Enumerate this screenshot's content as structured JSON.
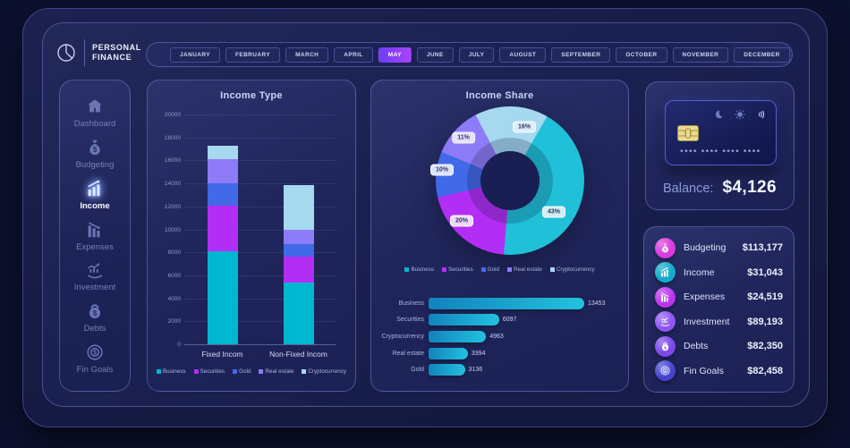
{
  "brand": {
    "line1": "PERSONAL",
    "line2": "FINANCE"
  },
  "months": {
    "items": [
      "JANUARY",
      "FEBRUARY",
      "MARCH",
      "APRIL",
      "MAY",
      "JUNE",
      "JULY",
      "AUGUST",
      "SEPTEMBER",
      "OCTOBER",
      "NOVEMBER",
      "DECEMBER"
    ],
    "selected": "MAY",
    "selected_index": 4
  },
  "colors": {
    "accent_gradient": [
      "#6a3df5",
      "#a844fb"
    ],
    "teal": "#00b7d0",
    "magenta": "#b32ef5",
    "blue": "#4169e8",
    "periwinkle": "#8d7bf7",
    "lightblue": "#a6d8ef"
  },
  "sidebar": {
    "items": [
      {
        "label": "Dashboard",
        "icon": "home-icon",
        "active": false
      },
      {
        "label": "Budgeting",
        "icon": "money-bag-icon",
        "active": false
      },
      {
        "label": "Income",
        "icon": "income-chart-icon",
        "active": true
      },
      {
        "label": "Expenses",
        "icon": "expenses-chart-icon",
        "active": false
      },
      {
        "label": "Investment",
        "icon": "investment-icon",
        "active": false
      },
      {
        "label": "Debts",
        "icon": "debts-icon",
        "active": false
      },
      {
        "label": "Fin Goals",
        "icon": "fin-goals-icon",
        "active": false
      }
    ]
  },
  "legend": {
    "items": [
      {
        "label": "Business",
        "color": "#00b7d0"
      },
      {
        "label": "Securities",
        "color": "#b32ef5"
      },
      {
        "label": "Gold",
        "color": "#4169e8"
      },
      {
        "label": "Real estate",
        "color": "#8d7bf7"
      },
      {
        "label": "Cryptocurrency",
        "color": "#a6d8ef"
      }
    ]
  },
  "income_type_card": {
    "title": "Income Type",
    "x_labels": [
      "Fixed Incom",
      "Non-Fixed Incom"
    ],
    "y_ticks": [
      "20000",
      "18000",
      "16000",
      "14000",
      "12000",
      "10000",
      "8000",
      "6000",
      "4000",
      "2000",
      "0"
    ]
  },
  "income_share_card": {
    "title": "Income Share"
  },
  "balance_card": {
    "label": "Balance:",
    "amount": "$4,126",
    "card_number": "**** **** **** ****",
    "card_icons": [
      "moon-icon",
      "sun-icon",
      "contactless-icon",
      "chip-icon"
    ]
  },
  "summary": {
    "rows": [
      {
        "label": "Budgeting",
        "amount": "$113,177",
        "icon": "money-bag-icon",
        "color": "#d83bdf"
      },
      {
        "label": "Income",
        "amount": "$31,043",
        "icon": "income-chart-icon",
        "color": "#12aacc"
      },
      {
        "label": "Expenses",
        "amount": "$24,519",
        "icon": "expenses-chart-icon",
        "color": "#bb35ef"
      },
      {
        "label": "Investment",
        "amount": "$89,193",
        "icon": "investment-icon",
        "color": "#8f55f2"
      },
      {
        "label": "Debts",
        "amount": "$82,350",
        "icon": "debts-icon",
        "color": "#7b48ea"
      },
      {
        "label": "Fin Goals",
        "amount": "$82,458",
        "icon": "fin-goals-icon",
        "color": "#4643cf"
      }
    ]
  },
  "chart_data": [
    {
      "type": "bar",
      "subtype": "stacked-vertical",
      "title": "Income Type",
      "categories": [
        "Fixed Incom",
        "Non-Fixed Incom"
      ],
      "series": [
        {
          "name": "Business",
          "color": "#00b7d0",
          "values": [
            8100,
            5350
          ]
        },
        {
          "name": "Securities",
          "color": "#b32ef5",
          "values": [
            3950,
            2300
          ]
        },
        {
          "name": "Gold",
          "color": "#4169e8",
          "values": [
            1950,
            1050
          ]
        },
        {
          "name": "Real estate",
          "color": "#8d7bf7",
          "values": [
            2100,
            1300
          ]
        },
        {
          "name": "Cryptocurrency",
          "color": "#a6d8ef",
          "values": [
            1150,
            3850
          ]
        }
      ],
      "ylim": [
        0,
        20000
      ],
      "ytick_step": 2000,
      "grid": true,
      "legend_position": "bottom"
    },
    {
      "type": "pie",
      "donut": true,
      "title": "Income Share",
      "start_angle_deg": 30,
      "slices": [
        {
          "label": "Business",
          "value": 43,
          "display": "43%",
          "color": "#1fc0d8"
        },
        {
          "label": "Securities",
          "value": 20,
          "display": "20%",
          "color": "#b32ef5"
        },
        {
          "label": "Gold",
          "value": 10,
          "display": "10%",
          "color": "#4169e8"
        },
        {
          "label": "Real estate",
          "value": 11,
          "display": "11%",
          "color": "#8d7bf7"
        },
        {
          "label": "Cryptocurrency",
          "value": 16,
          "display": "16%",
          "color": "#a6d8ef"
        }
      ],
      "legend_position": "bottom"
    },
    {
      "type": "bar",
      "subtype": "horizontal",
      "categories": [
        "Business",
        "Securities",
        "Cryptocurrency",
        "Real estate",
        "Gold"
      ],
      "values": [
        13453,
        6097,
        4963,
        3394,
        3136
      ],
      "value_labels": [
        "13453",
        "6097",
        "4963",
        "3394",
        "3136"
      ],
      "xmax": 13453,
      "bar_gradient": [
        "#1183bd",
        "#22c2de"
      ]
    }
  ]
}
